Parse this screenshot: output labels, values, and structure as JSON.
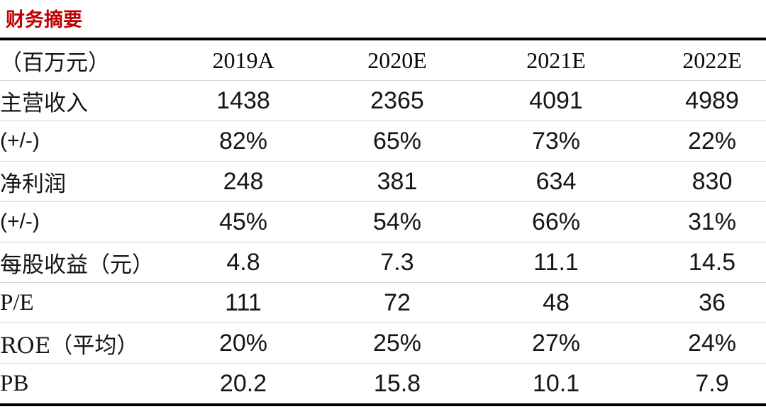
{
  "title": "财务摘要",
  "table": {
    "unit_label": "（百万元）",
    "columns": [
      "2019A",
      "2020E",
      "2021E",
      "2022E"
    ],
    "rows": [
      {
        "label": "主营收入",
        "values": [
          "1438",
          "2365",
          "4091",
          "4989"
        ]
      },
      {
        "label": "(+/-)",
        "values": [
          "82%",
          "65%",
          "73%",
          "22%"
        ]
      },
      {
        "label": "净利润",
        "values": [
          "248",
          "381",
          "634",
          "830"
        ]
      },
      {
        "label": "(+/-)",
        "values": [
          "45%",
          "54%",
          "66%",
          "31%"
        ]
      },
      {
        "label": "每股收益（元）",
        "values": [
          "4.8",
          "7.3",
          "11.1",
          "14.5"
        ]
      },
      {
        "label": "P/E",
        "values": [
          "111",
          "72",
          "48",
          "36"
        ]
      },
      {
        "label": "ROE（平均）",
        "values": [
          "20%",
          "25%",
          "27%",
          "24%"
        ]
      },
      {
        "label": "PB",
        "values": [
          "20.2",
          "15.8",
          "10.1",
          "7.9"
        ]
      }
    ]
  },
  "colors": {
    "title_red": "#c00000",
    "rule_dark": "#000000",
    "rule_light": "#d6d6d6",
    "text": "#141414"
  }
}
